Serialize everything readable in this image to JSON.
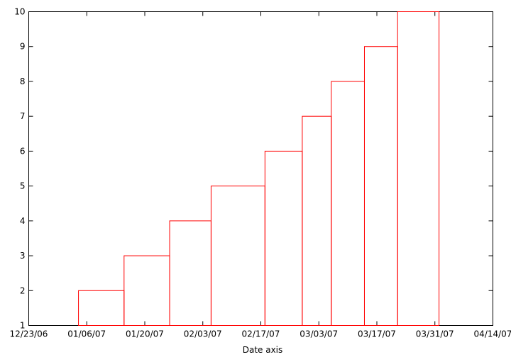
{
  "chart_data": {
    "type": "bar",
    "style": "steps",
    "title": "",
    "xlabel": "Date axis",
    "ylabel": "",
    "x_type": "date",
    "xlim": [
      "12/23/06",
      "04/14/07"
    ],
    "ylim": [
      1,
      10
    ],
    "grid": false,
    "legend": "none",
    "x_ticks": [
      "12/23/06",
      "01/06/07",
      "01/20/07",
      "02/03/07",
      "02/17/07",
      "03/03/07",
      "03/17/07",
      "03/31/07",
      "04/14/07"
    ],
    "y_ticks": [
      1,
      2,
      3,
      4,
      5,
      6,
      7,
      8,
      9,
      10
    ],
    "bars": [
      {
        "start": "01/04/07",
        "end": "01/15/07",
        "value": 2
      },
      {
        "start": "01/15/07",
        "end": "01/26/07",
        "value": 3
      },
      {
        "start": "01/26/07",
        "end": "02/05/07",
        "value": 4
      },
      {
        "start": "02/05/07",
        "end": "02/18/07",
        "value": 5
      },
      {
        "start": "02/18/07",
        "end": "02/27/07",
        "value": 6
      },
      {
        "start": "02/27/07",
        "end": "03/06/07",
        "value": 7
      },
      {
        "start": "03/06/07",
        "end": "03/14/07",
        "value": 8
      },
      {
        "start": "03/14/07",
        "end": "03/22/07",
        "value": 9
      },
      {
        "start": "03/22/07",
        "end": "04/01/07",
        "value": 10
      }
    ],
    "colors": {
      "series": "#ff0000",
      "axes": "#000000"
    }
  }
}
